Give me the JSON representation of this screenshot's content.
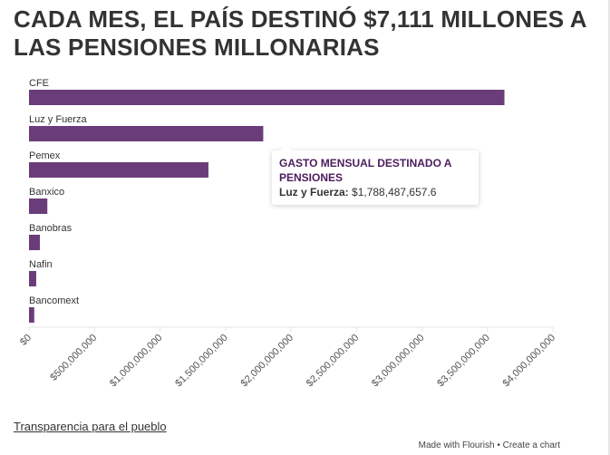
{
  "chart_data": {
    "type": "bar",
    "orientation": "horizontal",
    "title": "CADA MES, EL PAÍS DESTINÓ $7,111 MILLONES A LAS PENSIONES MILLONARIAS",
    "categories": [
      "CFE",
      "Luz y Fuerza",
      "Pemex",
      "Banxico",
      "Banobras",
      "Nafin",
      "Bancomext"
    ],
    "values": [
      3630000000,
      1788487657.6,
      1370000000,
      140000000,
      83000000,
      55000000,
      40000000
    ],
    "xlim": [
      0,
      4000000000
    ],
    "xticks": [
      0,
      500000000,
      1000000000,
      1500000000,
      2000000000,
      2500000000,
      3000000000,
      3500000000,
      4000000000
    ],
    "xtick_labels": [
      "$0",
      "$500,000,000",
      "$1,000,000,000",
      "$1,500,000,000",
      "$2,000,000,000",
      "$2,500,000,000",
      "$3,000,000,000",
      "$3,500,000,000",
      "$4,000,000,000"
    ],
    "bar_color": "#6a3d7a",
    "grid": false
  },
  "tooltip": {
    "title": "GASTO MENSUAL DESTINADO A PENSIONES",
    "label": "Luz y Fuerza:",
    "value": "$1,788,487,657.6"
  },
  "footer": {
    "source": "Transparencia para el pueblo",
    "credit": "Made with Flourish • Create a chart"
  }
}
